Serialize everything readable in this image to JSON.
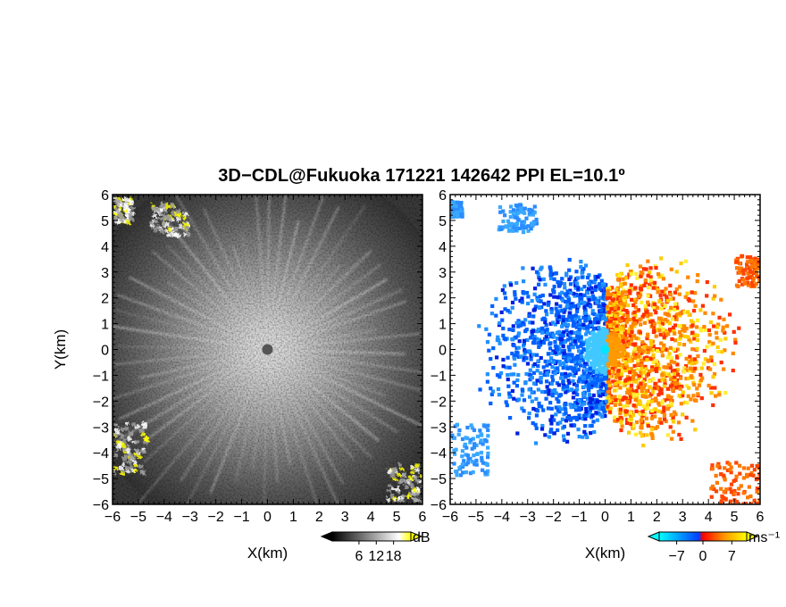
{
  "figure": {
    "title": "3D−CDL@Fukuoka 171221 142642 PPI EL=10.1º"
  },
  "chart_data": [
    {
      "type": "heatmap",
      "panel": "left",
      "title": "",
      "xlabel": "X(km)",
      "ylabel": "Y(km)",
      "xlim": [
        -6,
        6
      ],
      "ylim": [
        -6,
        6
      ],
      "x_ticks": [
        "−6",
        "−5",
        "−4",
        "−3",
        "−2",
        "−1",
        "0",
        "1",
        "2",
        "3",
        "4",
        "5",
        "6"
      ],
      "y_ticks": [
        "6",
        "5",
        "4",
        "3",
        "2",
        "1",
        "0",
        "−1",
        "−2",
        "−3",
        "−4",
        "−5",
        "−6"
      ],
      "field": "signal-to-noise ratio (grayscale)",
      "colorbar": {
        "unit": "dB",
        "ticks": [
          "6",
          "12",
          "18"
        ],
        "colors": [
          "#000000",
          "#ffffff",
          "#ffff00"
        ]
      },
      "radar_center": [
        0,
        0
      ],
      "bright_echo_regions": [
        {
          "x_range": [
            -4.6,
            -3.1
          ],
          "y_range": [
            4.5,
            5.7
          ]
        },
        {
          "x_range": [
            -6,
            -5.3
          ],
          "y_range": [
            5.0,
            5.9
          ]
        },
        {
          "x_range": [
            -6,
            -4.7
          ],
          "y_range": [
            -4.8,
            -2.8
          ]
        },
        {
          "x_range": [
            4.6,
            6
          ],
          "y_range": [
            -5.8,
            -4.4
          ]
        }
      ],
      "grid": false
    },
    {
      "type": "heatmap",
      "panel": "right",
      "title": "",
      "xlabel": "X(km)",
      "ylabel": "",
      "xlim": [
        -6,
        6
      ],
      "ylim": [
        -6,
        6
      ],
      "x_ticks": [
        "−6",
        "−5",
        "−4",
        "−3",
        "−2",
        "−1",
        "0",
        "1",
        "2",
        "3",
        "4",
        "5",
        "6"
      ],
      "y_ticks": [
        "6",
        "5",
        "4",
        "3",
        "2",
        "1",
        "0",
        "−1",
        "−2",
        "−3",
        "−4",
        "−5",
        "−6"
      ],
      "field": "Doppler radial velocity",
      "colorbar": {
        "unit": "ms⁻¹",
        "ticks": [
          "−7",
          "0",
          "7"
        ],
        "range": [
          -7,
          7
        ],
        "colors": [
          "#00ffff",
          "#0050ff",
          "#ff0000",
          "#ff9900",
          "#ffff00"
        ]
      },
      "pattern": "negative (blue) west of radar, positive (red/orange/yellow) east of radar",
      "echo_regions": [
        {
          "x_range": [
            -4.2,
            -2.7
          ],
          "y_range": [
            4.6,
            5.7
          ],
          "sign": "negative"
        },
        {
          "x_range": [
            -6,
            -5.6
          ],
          "y_range": [
            5.2,
            5.8
          ],
          "sign": "negative"
        },
        {
          "x_range": [
            -6,
            -4.6
          ],
          "y_range": [
            -4.8,
            -2.8
          ],
          "sign": "negative"
        },
        {
          "x_range": [
            4.0,
            6
          ],
          "y_range": [
            -6,
            -4.3
          ],
          "sign": "positive"
        },
        {
          "x_range": [
            5.0,
            6
          ],
          "y_range": [
            2.5,
            3.7
          ],
          "sign": "positive"
        }
      ],
      "grid": false
    }
  ]
}
